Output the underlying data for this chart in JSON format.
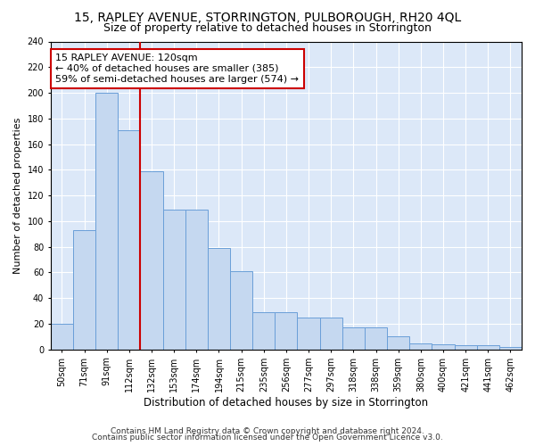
{
  "title": "15, RAPLEY AVENUE, STORRINGTON, PULBOROUGH, RH20 4QL",
  "subtitle": "Size of property relative to detached houses in Storrington",
  "xlabel": "Distribution of detached houses by size in Storrington",
  "ylabel": "Number of detached properties",
  "categories": [
    "50sqm",
    "71sqm",
    "91sqm",
    "112sqm",
    "132sqm",
    "153sqm",
    "174sqm",
    "194sqm",
    "215sqm",
    "235sqm",
    "256sqm",
    "277sqm",
    "297sqm",
    "318sqm",
    "338sqm",
    "359sqm",
    "380sqm",
    "400sqm",
    "421sqm",
    "441sqm",
    "462sqm"
  ],
  "values": [
    20,
    93,
    200,
    171,
    139,
    109,
    109,
    79,
    61,
    29,
    29,
    25,
    25,
    17,
    17,
    10,
    5,
    4,
    3,
    3,
    2
  ],
  "bar_color": "#c5d8f0",
  "bar_edge_color": "#6a9fd8",
  "vline_pos": 3.5,
  "vline_color": "#cc0000",
  "annotation_text": "15 RAPLEY AVENUE: 120sqm\n← 40% of detached houses are smaller (385)\n59% of semi-detached houses are larger (574) →",
  "annotation_box_color": "white",
  "annotation_box_edge": "#cc0000",
  "ylim": [
    0,
    240
  ],
  "yticks": [
    0,
    20,
    40,
    60,
    80,
    100,
    120,
    140,
    160,
    180,
    200,
    220,
    240
  ],
  "bg_color": "#dce8f8",
  "grid_color": "#ffffff",
  "footer1": "Contains HM Land Registry data © Crown copyright and database right 2024.",
  "footer2": "Contains public sector information licensed under the Open Government Licence v3.0.",
  "title_fontsize": 10,
  "subtitle_fontsize": 9,
  "xlabel_fontsize": 8.5,
  "ylabel_fontsize": 8,
  "tick_fontsize": 7,
  "annotation_fontsize": 8,
  "footer_fontsize": 6.5
}
